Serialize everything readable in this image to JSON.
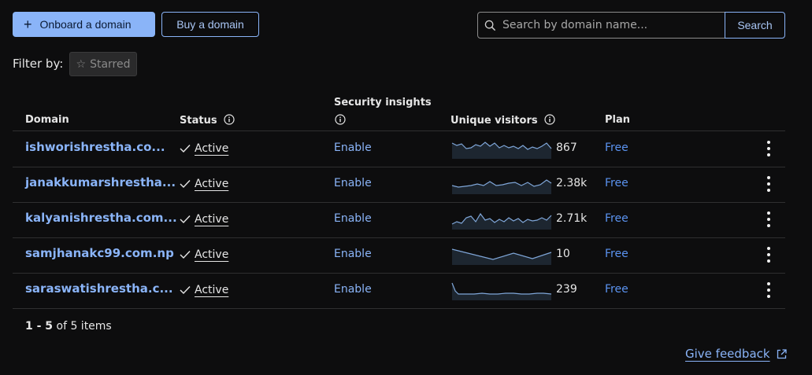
{
  "toolbar": {
    "onboard_label": "Onboard a domain",
    "buy_label": "Buy a domain",
    "search_placeholder": "Search by domain name...",
    "search_button": "Search"
  },
  "filter": {
    "label": "Filter by:",
    "chip_label": "Starred"
  },
  "table": {
    "headers": {
      "domain": "Domain",
      "status": "Status",
      "security": "Security insights",
      "visitors": "Unique visitors",
      "plan": "Plan"
    },
    "rows": [
      {
        "domain": "ishworishrestha.co...",
        "status": "Active",
        "security": "Enable",
        "visitors": "867",
        "plan": "Free"
      },
      {
        "domain": "janakkumarshrestha...",
        "status": "Active",
        "security": "Enable",
        "visitors": "2.38k",
        "plan": "Free"
      },
      {
        "domain": "kalyanishrestha.com...",
        "status": "Active",
        "security": "Enable",
        "visitors": "2.71k",
        "plan": "Free"
      },
      {
        "domain": "samjhanakc99.com.np",
        "status": "Active",
        "security": "Enable",
        "visitors": "10",
        "plan": "Free"
      },
      {
        "domain": "saraswatishrestha.c...",
        "status": "Active",
        "security": "Enable",
        "visitors": "239",
        "plan": "Free"
      }
    ]
  },
  "pagination": {
    "range": "1 - 5",
    "suffix": " of 5 items"
  },
  "footer": {
    "feedback_label": "Give feedback"
  },
  "colors": {
    "accent": "#8ab4f8",
    "plan_link": "#5b93f0",
    "background": "#0d0d0e"
  },
  "icons": {
    "plus": "plus-icon",
    "search": "search-icon",
    "star": "star-icon",
    "info": "info-icon",
    "check": "check-icon",
    "kebab": "kebab-menu-icon",
    "external": "external-link-icon"
  }
}
